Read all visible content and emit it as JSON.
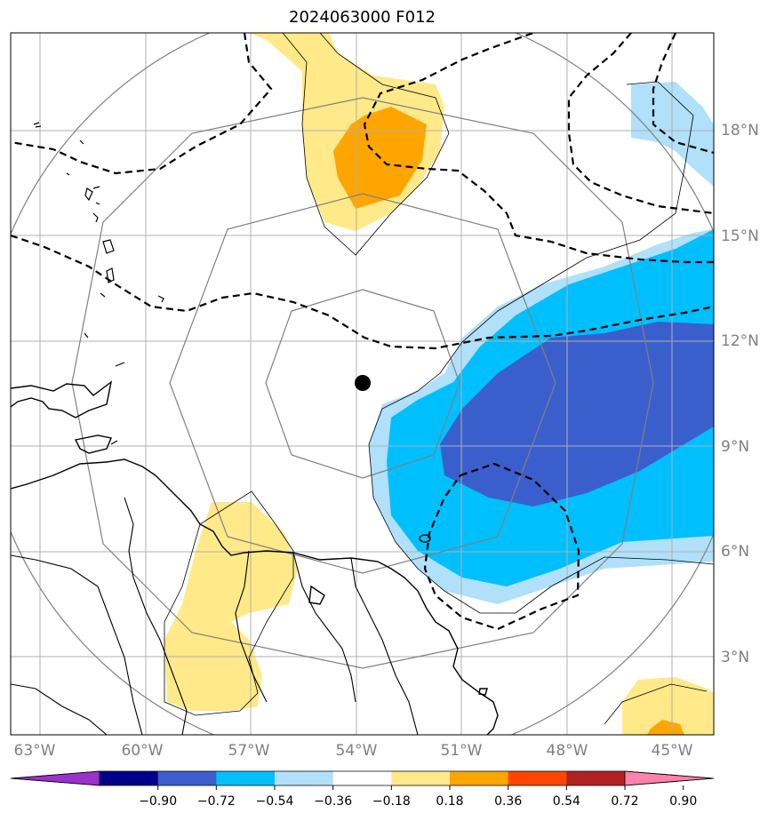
{
  "title": "2024063000 F012",
  "map": {
    "lon_labels": [
      "63°W",
      "60°W",
      "57°W",
      "54°W",
      "51°W",
      "48°W",
      "45°W"
    ],
    "lat_labels": [
      "18°N",
      "15°N",
      "12°N",
      "9°N",
      "6°N",
      "3°N"
    ],
    "storm_center": {
      "lon": -53.8,
      "lat": 10.8
    }
  },
  "colorbar": {
    "ticks": [
      "−0.90",
      "−0.72",
      "−0.54",
      "−0.36",
      "−0.18",
      "0.18",
      "0.36",
      "0.54",
      "0.72",
      "0.90"
    ],
    "colors": [
      "#9932cc",
      "#00008b",
      "#3a5fcd",
      "#00bfff",
      "#b0e0fa",
      "#ffffff",
      "#ffe989",
      "#ffa500",
      "#ff4500",
      "#b22222",
      "#ff82ab"
    ]
  }
}
